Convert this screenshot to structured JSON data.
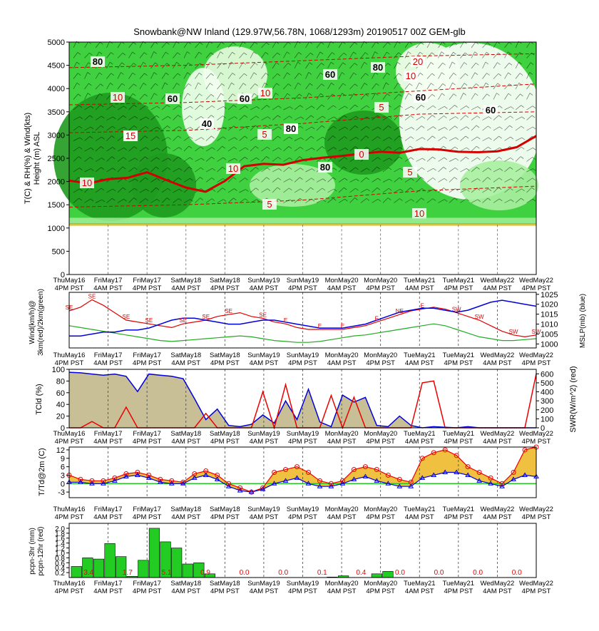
{
  "title": "Snowbank@NW Inland (129.97W,56.78N, 1068/1293m)  20190517  00Z  GEM-glb",
  "time_labels": [
    [
      "ThuMay16",
      "4PM PST"
    ],
    [
      "FriMay17",
      "4AM PST"
    ],
    [
      "FriMay17",
      "4PM PST"
    ],
    [
      "SatMay18",
      "4AM PST"
    ],
    [
      "SatMay18",
      "4PM PST"
    ],
    [
      "SunMay19",
      "4AM PST"
    ],
    [
      "SunMay19",
      "4PM PST"
    ],
    [
      "MonMay20",
      "4AM PST"
    ],
    [
      "MonMay20",
      "4PM PST"
    ],
    [
      "TueMay21",
      "4AM PST"
    ],
    [
      "TueMay21",
      "4PM PST"
    ],
    [
      "WedMay22",
      "4AM PST"
    ],
    [
      "WedMay22",
      "4PM PST"
    ]
  ],
  "colors": {
    "rh_dark": "#1f9a1f",
    "rh_mid": "#3fd13f",
    "rh_light": "#a8f0a0",
    "freezing_line": "#d40000",
    "wind_red": "#e00000",
    "wind_green": "#22aa22",
    "mslp_blue": "#0000dd",
    "cloud_fill": "#c8bf96",
    "swr_red": "#ee0000",
    "temp_fill": "#f0c040",
    "precip_green": "#22cc22",
    "zero_line": "#22cc22"
  },
  "chart_data": [
    {
      "type": "heatmap",
      "name": "cross-section",
      "ylabel": "T(C) & RH(%) & Wind(kts)\nHeight (m) ASL",
      "ylim": [
        0,
        5000
      ],
      "yticks": [
        0,
        500,
        1000,
        1500,
        2000,
        2500,
        3000,
        3500,
        4000,
        4500,
        5000
      ],
      "ground_height": 1068,
      "freezing_level_m": [
        2020,
        1960,
        2050,
        2080,
        2200,
        2030,
        1870,
        1780,
        2010,
        2330,
        2380,
        2360,
        2460,
        2510,
        2550,
        2600,
        2640,
        2620,
        2700,
        2690,
        2640,
        2630,
        2650,
        2740,
        2980
      ],
      "temp_labels": [
        "80",
        "15",
        "10",
        "15",
        "10",
        "60",
        "40",
        "60",
        "80",
        "5",
        "10",
        "80",
        "80",
        "60",
        "0",
        "10",
        "5",
        "80",
        "60",
        "20",
        "5",
        "60",
        "10",
        "5",
        "10"
      ],
      "rh_labels": [
        "80",
        "60",
        "40",
        "60",
        "80",
        "60",
        "80",
        "80",
        "60",
        "60",
        "60"
      ]
    },
    {
      "type": "line",
      "name": "wind-mslp",
      "ylabel": "Wind(km/h)@ 3km(red)/2km(green)",
      "y2label": "MSLP(mb) (blue)",
      "y2ticks": [
        1000,
        1005,
        1010,
        1015,
        1020,
        1025
      ],
      "y2lim": [
        998,
        1026
      ],
      "series": [
        {
          "values": [
            40,
            44,
            52,
            46,
            38,
            30,
            28,
            26,
            24,
            22,
            26,
            28,
            30,
            34,
            36,
            38,
            34,
            32,
            28,
            26,
            22,
            20,
            20,
            20,
            20,
            22,
            24,
            28,
            32,
            36,
            40,
            42,
            44,
            42,
            38,
            34,
            30,
            24,
            18,
            14,
            12,
            14
          ]
        },
        {
          "values": [
            24,
            22,
            20,
            18,
            16,
            14,
            12,
            10,
            8,
            7,
            8,
            9,
            10,
            11,
            12,
            13,
            12,
            10,
            8,
            7,
            6,
            6,
            7,
            9,
            11,
            13,
            14,
            16,
            18,
            20,
            22,
            24,
            26,
            24,
            20,
            16,
            12,
            10,
            8,
            8,
            9,
            10
          ]
        },
        {
          "values": [
            1004,
            1004,
            1005,
            1006,
            1006,
            1007,
            1007,
            1008,
            1010,
            1012,
            1013,
            1013,
            1012,
            1011,
            1010,
            1010,
            1011,
            1012,
            1012,
            1011,
            1010,
            1009,
            1008,
            1008,
            1008,
            1009,
            1010,
            1012,
            1014,
            1016,
            1017,
            1018,
            1018,
            1017,
            1016,
            1017,
            1019,
            1021,
            1022,
            1021,
            1020,
            1019
          ]
        }
      ],
      "arrow_label_3km": [
        "SE",
        "SE",
        "SE",
        "SE",
        "SE",
        "SE",
        "SE",
        "SE",
        "E",
        "E",
        "E",
        "E",
        "NE",
        "E",
        "SW",
        "SW",
        "SW",
        "SW"
      ]
    },
    {
      "type": "area",
      "name": "cloud-swr",
      "ylabel": "TCld (%)",
      "y2label": "SWR(W/m^2) (red)",
      "ylim": [
        0,
        100
      ],
      "yticks": [
        0,
        20,
        40,
        60,
        80,
        100
      ],
      "y2ticks": [
        0,
        100,
        200,
        300,
        400,
        500,
        600
      ],
      "series": [
        {
          "values": [
            95,
            94,
            92,
            90,
            92,
            88,
            62,
            92,
            90,
            88,
            84,
            50,
            14,
            32,
            4,
            2,
            6,
            22,
            8,
            46,
            14,
            66,
            10,
            2,
            56,
            44,
            52,
            4,
            2,
            20,
            4,
            0,
            2,
            1,
            0,
            2,
            0,
            0,
            0,
            0,
            0,
            0
          ]
        },
        {
          "values": [
            0,
            0,
            70,
            0,
            0,
            230,
            0,
            0,
            0,
            0,
            0,
            0,
            160,
            0,
            0,
            0,
            0,
            400,
            0,
            480,
            0,
            0,
            0,
            360,
            0,
            340,
            0,
            0,
            0,
            0,
            0,
            500,
            520,
            0,
            0,
            0,
            0,
            0,
            0,
            0,
            0,
            600
          ]
        }
      ]
    },
    {
      "type": "line",
      "name": "temperature",
      "ylabel": "T/Td@2m (C)",
      "ylim": [
        -5,
        13
      ],
      "yticks": [
        -3,
        0,
        3,
        6,
        9,
        12
      ],
      "series": [
        {
          "values": [
            3,
            1.5,
            1,
            1,
            2,
            3.5,
            4,
            3,
            1.5,
            1,
            0.5,
            3.5,
            4.5,
            3,
            0,
            -1.5,
            -3,
            -1.5,
            4,
            5,
            6,
            4,
            1,
            0,
            1,
            5,
            6,
            5,
            3,
            1.5,
            0.5,
            9,
            11,
            12,
            10,
            6,
            4,
            2,
            0,
            4,
            12,
            13
          ]
        },
        {
          "values": [
            0.5,
            0.5,
            0,
            0,
            1,
            2.5,
            3,
            2,
            0.5,
            0,
            0,
            2,
            3,
            1.5,
            -1,
            -2.5,
            -3,
            -2,
            0,
            1,
            2,
            0,
            -1,
            -1,
            0,
            1.5,
            2.5,
            1,
            0,
            -1,
            -1,
            2,
            3,
            4,
            4,
            3,
            1,
            0,
            -1,
            1.5,
            3,
            2.5
          ]
        }
      ]
    },
    {
      "type": "bar",
      "name": "precipitation",
      "ylabel": "pcpn-3hr (mm)\npcpn-12hr (red)",
      "ylim": [
        0,
        2.2
      ],
      "yticks": [
        0.2,
        0.4,
        0.6,
        0.8,
        1.0,
        1.2,
        1.4,
        1.6,
        1.8,
        2.0
      ],
      "values": [
        0.45,
        0.8,
        0.75,
        1.38,
        0.85,
        0.05,
        0.7,
        2.0,
        1.45,
        1.2,
        0.55,
        0.6,
        0.15,
        0,
        0,
        0,
        0,
        0,
        0,
        0,
        0,
        0,
        0,
        0.02,
        0.07,
        0,
        0,
        0.15,
        0.25,
        0,
        0,
        0,
        0,
        0,
        0,
        0,
        0,
        0,
        0,
        0,
        0,
        0
      ],
      "totals_12hr": [
        "3.4",
        "1.7",
        "5.1",
        "0.9",
        "0.0",
        "0.0",
        "0.1",
        "0.4",
        "0.0",
        "0.0",
        "0.0",
        "0.0"
      ]
    }
  ]
}
